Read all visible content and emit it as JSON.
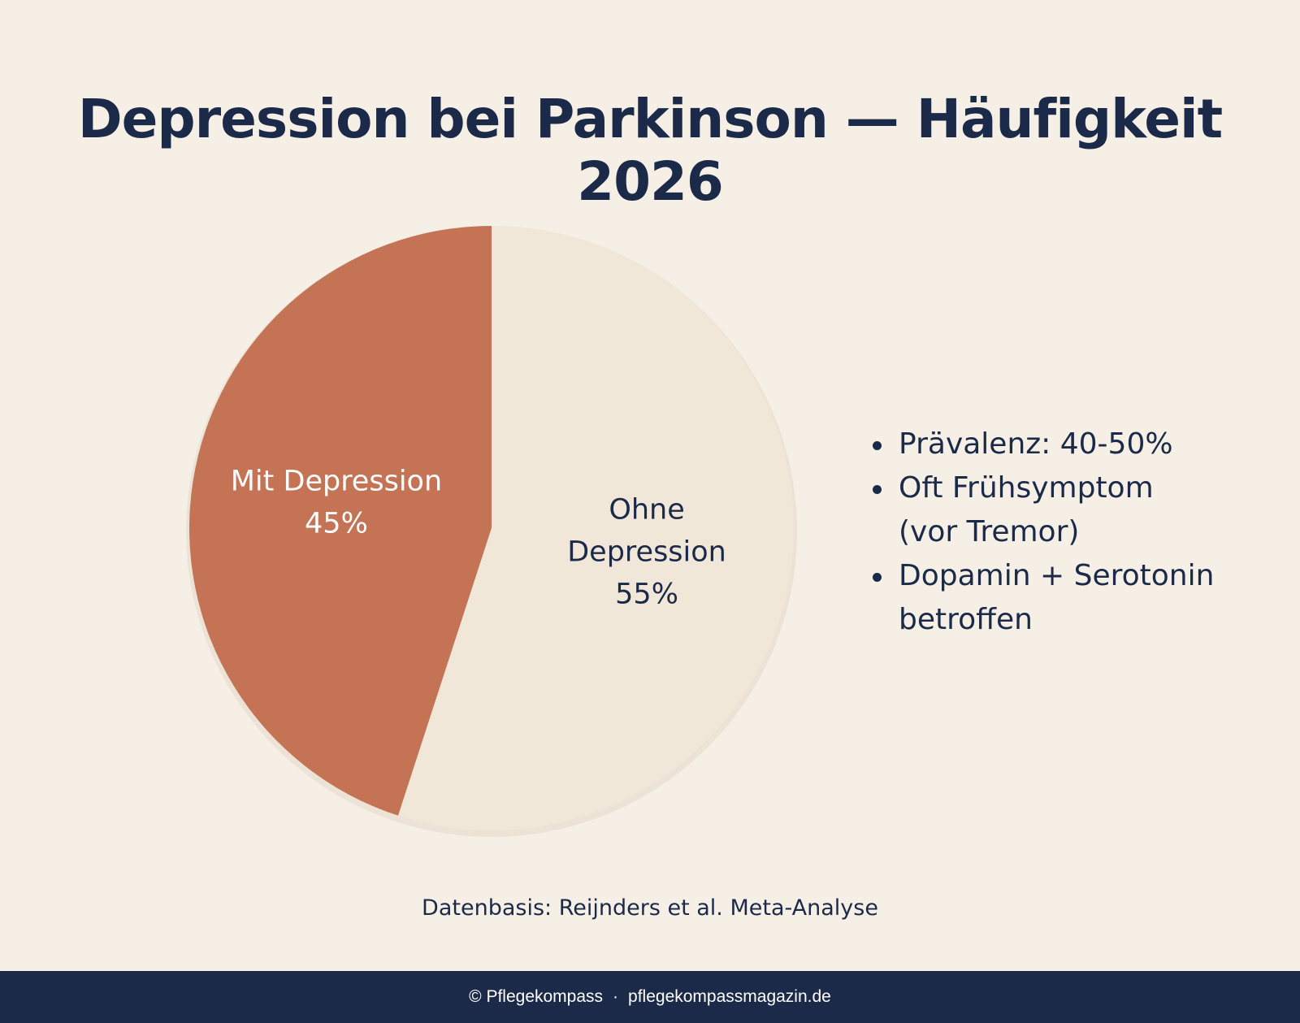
{
  "title": "Depression bei Parkinson — Häufigkeit 2026",
  "chart_data": {
    "type": "pie",
    "title": "Depression bei Parkinson — Häufigkeit 2026",
    "slices": [
      {
        "label_lines": [
          "Mit Depression"
        ],
        "value": 45,
        "value_label": "45%",
        "color": "#c47454",
        "text_color": "#ffffff"
      },
      {
        "label_lines": [
          "Ohne",
          "Depression"
        ],
        "value": 55,
        "value_label": "55%",
        "color": "#f1e7d8",
        "text_color": "#1c2a4a"
      }
    ]
  },
  "bullets": [
    {
      "lines": [
        "Prävalenz: 40-50%"
      ]
    },
    {
      "lines": [
        "Oft Frühsymptom",
        "(vor Tremor)"
      ]
    },
    {
      "lines": [
        "Dopamin + Serotonin",
        "betroffen"
      ]
    }
  ],
  "source": "Datenbasis: Reijnders et al. Meta-Analyse",
  "footer": {
    "copyright": "© Pflegekompass",
    "separator": "·",
    "site": "pflegekompassmagazin.de"
  }
}
